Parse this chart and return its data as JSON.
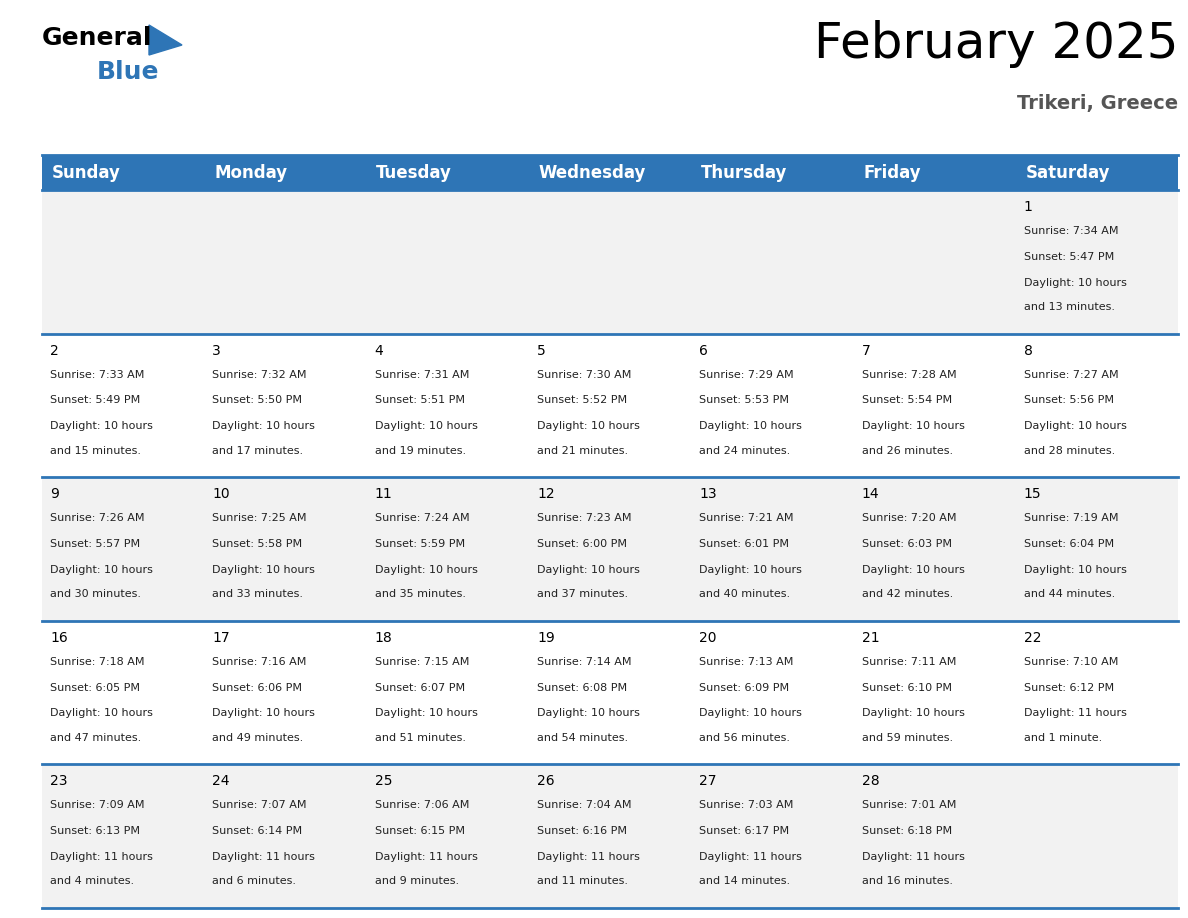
{
  "title": "February 2025",
  "subtitle": "Trikeri, Greece",
  "header_bg": "#2E75B6",
  "header_text_color": "#FFFFFF",
  "cell_bg_odd": "#F2F2F2",
  "cell_bg_even": "#FFFFFF",
  "day_headers": [
    "Sunday",
    "Monday",
    "Tuesday",
    "Wednesday",
    "Thursday",
    "Friday",
    "Saturday"
  ],
  "title_fontsize": 36,
  "subtitle_fontsize": 14,
  "header_fontsize": 12,
  "day_num_fontsize": 10,
  "cell_fontsize": 8,
  "calendar_data": [
    [
      null,
      null,
      null,
      null,
      null,
      null,
      {
        "day": 1,
        "sunrise": "7:34 AM",
        "sunset": "5:47 PM",
        "daylight_line1": "Daylight: 10 hours",
        "daylight_line2": "and 13 minutes."
      }
    ],
    [
      {
        "day": 2,
        "sunrise": "7:33 AM",
        "sunset": "5:49 PM",
        "daylight_line1": "Daylight: 10 hours",
        "daylight_line2": "and 15 minutes."
      },
      {
        "day": 3,
        "sunrise": "7:32 AM",
        "sunset": "5:50 PM",
        "daylight_line1": "Daylight: 10 hours",
        "daylight_line2": "and 17 minutes."
      },
      {
        "day": 4,
        "sunrise": "7:31 AM",
        "sunset": "5:51 PM",
        "daylight_line1": "Daylight: 10 hours",
        "daylight_line2": "and 19 minutes."
      },
      {
        "day": 5,
        "sunrise": "7:30 AM",
        "sunset": "5:52 PM",
        "daylight_line1": "Daylight: 10 hours",
        "daylight_line2": "and 21 minutes."
      },
      {
        "day": 6,
        "sunrise": "7:29 AM",
        "sunset": "5:53 PM",
        "daylight_line1": "Daylight: 10 hours",
        "daylight_line2": "and 24 minutes."
      },
      {
        "day": 7,
        "sunrise": "7:28 AM",
        "sunset": "5:54 PM",
        "daylight_line1": "Daylight: 10 hours",
        "daylight_line2": "and 26 minutes."
      },
      {
        "day": 8,
        "sunrise": "7:27 AM",
        "sunset": "5:56 PM",
        "daylight_line1": "Daylight: 10 hours",
        "daylight_line2": "and 28 minutes."
      }
    ],
    [
      {
        "day": 9,
        "sunrise": "7:26 AM",
        "sunset": "5:57 PM",
        "daylight_line1": "Daylight: 10 hours",
        "daylight_line2": "and 30 minutes."
      },
      {
        "day": 10,
        "sunrise": "7:25 AM",
        "sunset": "5:58 PM",
        "daylight_line1": "Daylight: 10 hours",
        "daylight_line2": "and 33 minutes."
      },
      {
        "day": 11,
        "sunrise": "7:24 AM",
        "sunset": "5:59 PM",
        "daylight_line1": "Daylight: 10 hours",
        "daylight_line2": "and 35 minutes."
      },
      {
        "day": 12,
        "sunrise": "7:23 AM",
        "sunset": "6:00 PM",
        "daylight_line1": "Daylight: 10 hours",
        "daylight_line2": "and 37 minutes."
      },
      {
        "day": 13,
        "sunrise": "7:21 AM",
        "sunset": "6:01 PM",
        "daylight_line1": "Daylight: 10 hours",
        "daylight_line2": "and 40 minutes."
      },
      {
        "day": 14,
        "sunrise": "7:20 AM",
        "sunset": "6:03 PM",
        "daylight_line1": "Daylight: 10 hours",
        "daylight_line2": "and 42 minutes."
      },
      {
        "day": 15,
        "sunrise": "7:19 AM",
        "sunset": "6:04 PM",
        "daylight_line1": "Daylight: 10 hours",
        "daylight_line2": "and 44 minutes."
      }
    ],
    [
      {
        "day": 16,
        "sunrise": "7:18 AM",
        "sunset": "6:05 PM",
        "daylight_line1": "Daylight: 10 hours",
        "daylight_line2": "and 47 minutes."
      },
      {
        "day": 17,
        "sunrise": "7:16 AM",
        "sunset": "6:06 PM",
        "daylight_line1": "Daylight: 10 hours",
        "daylight_line2": "and 49 minutes."
      },
      {
        "day": 18,
        "sunrise": "7:15 AM",
        "sunset": "6:07 PM",
        "daylight_line1": "Daylight: 10 hours",
        "daylight_line2": "and 51 minutes."
      },
      {
        "day": 19,
        "sunrise": "7:14 AM",
        "sunset": "6:08 PM",
        "daylight_line1": "Daylight: 10 hours",
        "daylight_line2": "and 54 minutes."
      },
      {
        "day": 20,
        "sunrise": "7:13 AM",
        "sunset": "6:09 PM",
        "daylight_line1": "Daylight: 10 hours",
        "daylight_line2": "and 56 minutes."
      },
      {
        "day": 21,
        "sunrise": "7:11 AM",
        "sunset": "6:10 PM",
        "daylight_line1": "Daylight: 10 hours",
        "daylight_line2": "and 59 minutes."
      },
      {
        "day": 22,
        "sunrise": "7:10 AM",
        "sunset": "6:12 PM",
        "daylight_line1": "Daylight: 11 hours",
        "daylight_line2": "and 1 minute."
      }
    ],
    [
      {
        "day": 23,
        "sunrise": "7:09 AM",
        "sunset": "6:13 PM",
        "daylight_line1": "Daylight: 11 hours",
        "daylight_line2": "and 4 minutes."
      },
      {
        "day": 24,
        "sunrise": "7:07 AM",
        "sunset": "6:14 PM",
        "daylight_line1": "Daylight: 11 hours",
        "daylight_line2": "and 6 minutes."
      },
      {
        "day": 25,
        "sunrise": "7:06 AM",
        "sunset": "6:15 PM",
        "daylight_line1": "Daylight: 11 hours",
        "daylight_line2": "and 9 minutes."
      },
      {
        "day": 26,
        "sunrise": "7:04 AM",
        "sunset": "6:16 PM",
        "daylight_line1": "Daylight: 11 hours",
        "daylight_line2": "and 11 minutes."
      },
      {
        "day": 27,
        "sunrise": "7:03 AM",
        "sunset": "6:17 PM",
        "daylight_line1": "Daylight: 11 hours",
        "daylight_line2": "and 14 minutes."
      },
      {
        "day": 28,
        "sunrise": "7:01 AM",
        "sunset": "6:18 PM",
        "daylight_line1": "Daylight: 11 hours",
        "daylight_line2": "and 16 minutes."
      },
      null
    ]
  ]
}
